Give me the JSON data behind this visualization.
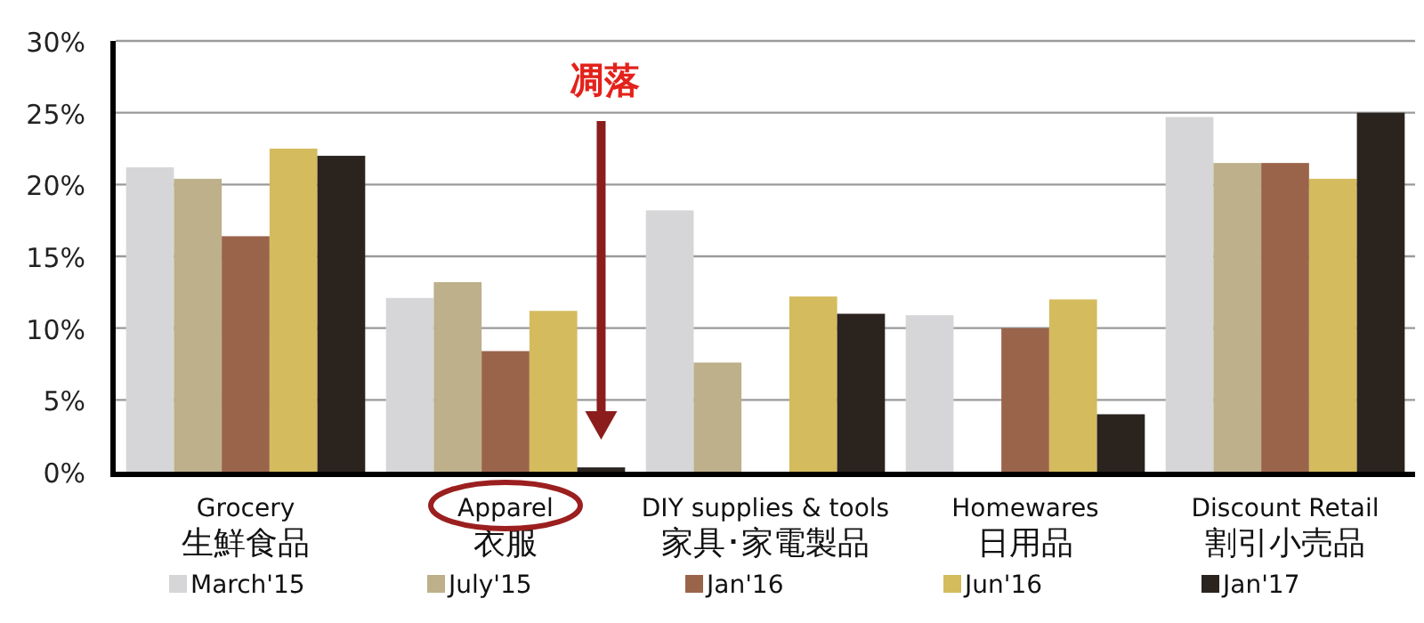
{
  "chart_data": {
    "type": "bar",
    "categories": [
      "Grocery\n生鮮食品",
      "Apparel\n衣服",
      "DIY supplies & tools\n家具･家電製品",
      "Homewares\n日用品",
      "Discount Retail\n割引小売品"
    ],
    "series": [
      {
        "name": "March'15",
        "color": "#d6d6d8",
        "values": [
          21.2,
          12.1,
          18.2,
          10.9,
          24.7
        ]
      },
      {
        "name": "July'15",
        "color": "#bdb08a",
        "values": [
          20.4,
          13.2,
          7.6,
          null,
          21.5
        ]
      },
      {
        "name": "Jan'16",
        "color": "#9a644b",
        "values": [
          16.4,
          8.4,
          null,
          10.0,
          21.5
        ]
      },
      {
        "name": "Jun'16",
        "color": "#d4bb5d",
        "values": [
          22.5,
          11.2,
          12.2,
          12.0,
          20.4
        ]
      },
      {
        "name": "Jan'17",
        "color": "#2a231e",
        "values": [
          22.0,
          0.3,
          11.0,
          4.0,
          25.0
        ]
      }
    ],
    "ylim": [
      0,
      30
    ],
    "yticks": [
      {
        "value": 0,
        "label": "0%"
      },
      {
        "value": 5,
        "label": "5%"
      },
      {
        "value": 10,
        "label": "10%"
      },
      {
        "value": 15,
        "label": "15%"
      },
      {
        "value": 20,
        "label": "20%"
      },
      {
        "value": 25,
        "label": "25%"
      },
      {
        "value": 30,
        "label": "30%"
      }
    ],
    "grid": "y",
    "legend": "bottom",
    "annotations": [
      "凋落"
    ]
  }
}
